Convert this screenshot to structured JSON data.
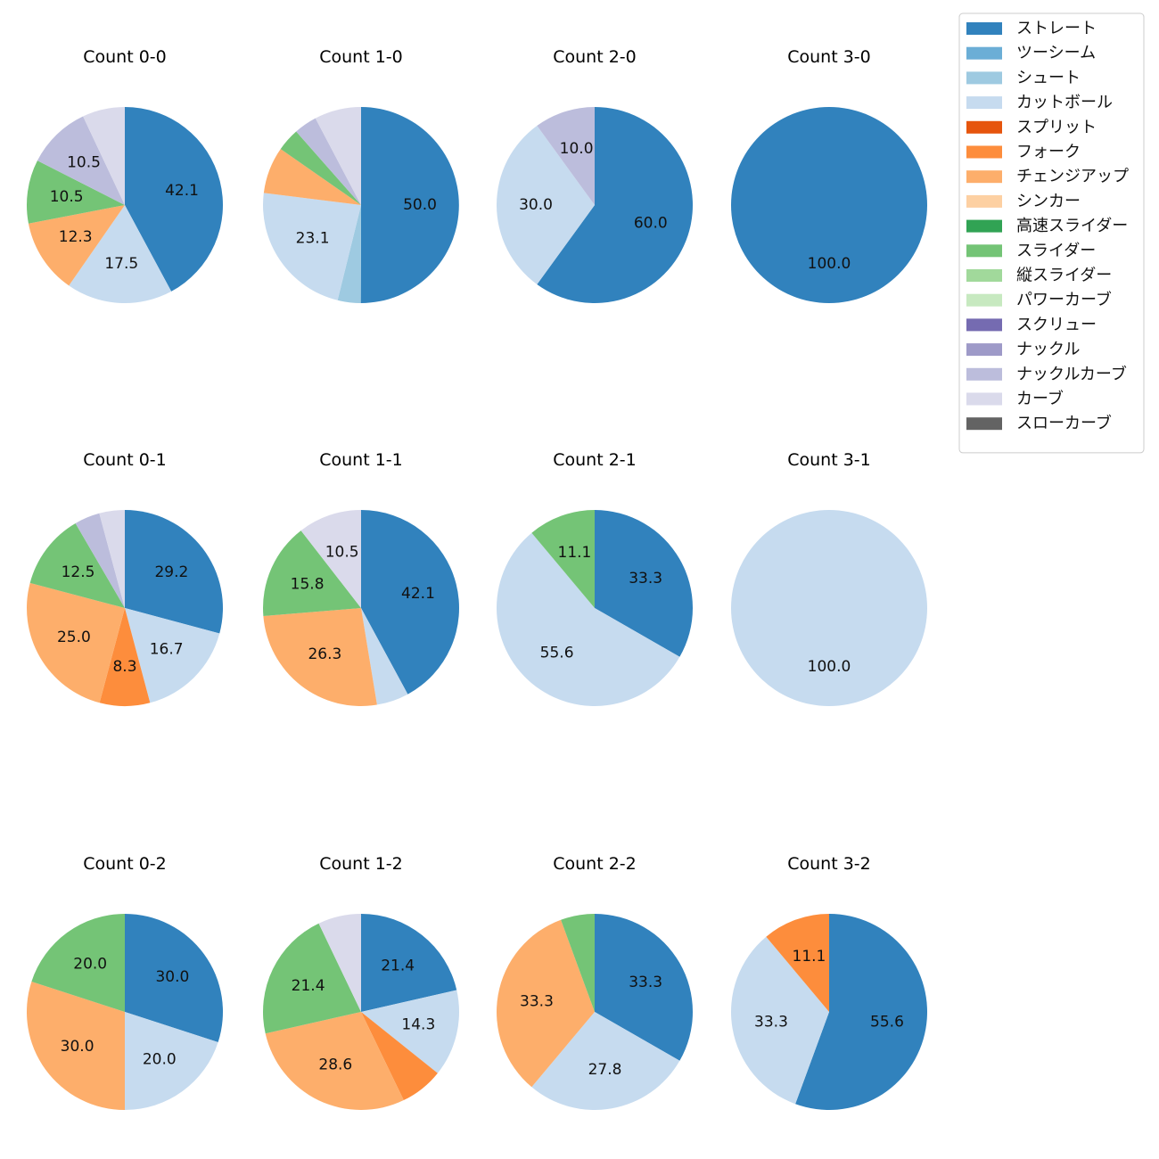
{
  "chart_data": {
    "type": "pie",
    "layout": "3x4 grid of pies",
    "start": "top, clockwise",
    "categories": [
      {
        "name": "ストレート",
        "color": "#3182bd"
      },
      {
        "name": "ツーシーム",
        "color": "#6baed6"
      },
      {
        "name": "シュート",
        "color": "#9ecae1"
      },
      {
        "name": "カットボール",
        "color": "#c6dbef"
      },
      {
        "name": "スプリット",
        "color": "#e6550d"
      },
      {
        "name": "フォーク",
        "color": "#fd8d3c"
      },
      {
        "name": "チェンジアップ",
        "color": "#fdae6b"
      },
      {
        "name": "シンカー",
        "color": "#fdd0a2"
      },
      {
        "name": "高速スライダー",
        "color": "#31a354"
      },
      {
        "name": "スライダー",
        "color": "#74c476"
      },
      {
        "name": "縦スライダー",
        "color": "#a1d99b"
      },
      {
        "name": "パワーカーブ",
        "color": "#c7e9c0"
      },
      {
        "name": "スクリュー",
        "color": "#756bb1"
      },
      {
        "name": "ナックル",
        "color": "#9e9ac8"
      },
      {
        "name": "ナックルカーブ",
        "color": "#bcbddc"
      },
      {
        "name": "カーブ",
        "color": "#dadaeb"
      },
      {
        "name": "スローカーブ",
        "color": "#636363"
      }
    ],
    "legend": {
      "position": "top-right"
    },
    "pies": [
      {
        "title": "Count 0-0",
        "slices": [
          {
            "category": "ストレート",
            "value": 42.1,
            "label": "42.1"
          },
          {
            "category": "カットボール",
            "value": 17.5,
            "label": "17.5"
          },
          {
            "category": "チェンジアップ",
            "value": 12.3,
            "label": "12.3"
          },
          {
            "category": "スライダー",
            "value": 10.5,
            "label": "10.5"
          },
          {
            "category": "ナックルカーブ",
            "value": 10.5,
            "label": "10.5"
          },
          {
            "category": "カーブ",
            "value": 7.0,
            "label": ""
          }
        ]
      },
      {
        "title": "Count 1-0",
        "slices": [
          {
            "category": "ストレート",
            "value": 50.0,
            "label": "50.0"
          },
          {
            "category": "シュート",
            "value": 3.8,
            "label": ""
          },
          {
            "category": "カットボール",
            "value": 23.1,
            "label": "23.1"
          },
          {
            "category": "チェンジアップ",
            "value": 7.7,
            "label": ""
          },
          {
            "category": "スライダー",
            "value": 3.8,
            "label": ""
          },
          {
            "category": "ナックルカーブ",
            "value": 3.8,
            "label": ""
          },
          {
            "category": "カーブ",
            "value": 7.7,
            "label": ""
          }
        ]
      },
      {
        "title": "Count 2-0",
        "slices": [
          {
            "category": "ストレート",
            "value": 60.0,
            "label": "60.0"
          },
          {
            "category": "カットボール",
            "value": 30.0,
            "label": "30.0"
          },
          {
            "category": "ナックルカーブ",
            "value": 10.0,
            "label": "10.0"
          }
        ]
      },
      {
        "title": "Count 3-0",
        "slices": [
          {
            "category": "ストレート",
            "value": 100.0,
            "label": "100.0"
          }
        ]
      },
      {
        "title": "Count 0-1",
        "slices": [
          {
            "category": "ストレート",
            "value": 29.2,
            "label": "29.2"
          },
          {
            "category": "カットボール",
            "value": 16.7,
            "label": "16.7"
          },
          {
            "category": "フォーク",
            "value": 8.3,
            "label": "8.3"
          },
          {
            "category": "チェンジアップ",
            "value": 25.0,
            "label": "25.0"
          },
          {
            "category": "スライダー",
            "value": 12.5,
            "label": "12.5"
          },
          {
            "category": "ナックルカーブ",
            "value": 4.2,
            "label": ""
          },
          {
            "category": "カーブ",
            "value": 4.2,
            "label": ""
          }
        ]
      },
      {
        "title": "Count 1-1",
        "slices": [
          {
            "category": "ストレート",
            "value": 42.1,
            "label": "42.1"
          },
          {
            "category": "カットボール",
            "value": 5.3,
            "label": ""
          },
          {
            "category": "チェンジアップ",
            "value": 26.3,
            "label": "26.3"
          },
          {
            "category": "スライダー",
            "value": 15.8,
            "label": "15.8"
          },
          {
            "category": "カーブ",
            "value": 10.5,
            "label": "10.5"
          }
        ]
      },
      {
        "title": "Count 2-1",
        "slices": [
          {
            "category": "ストレート",
            "value": 33.3,
            "label": "33.3"
          },
          {
            "category": "カットボール",
            "value": 55.6,
            "label": "55.6"
          },
          {
            "category": "スライダー",
            "value": 11.1,
            "label": "11.1"
          }
        ]
      },
      {
        "title": "Count 3-1",
        "slices": [
          {
            "category": "カットボール",
            "value": 100.0,
            "label": "100.0"
          }
        ]
      },
      {
        "title": "Count 0-2",
        "slices": [
          {
            "category": "ストレート",
            "value": 30.0,
            "label": "30.0"
          },
          {
            "category": "カットボール",
            "value": 20.0,
            "label": "20.0"
          },
          {
            "category": "チェンジアップ",
            "value": 30.0,
            "label": "30.0"
          },
          {
            "category": "スライダー",
            "value": 20.0,
            "label": "20.0"
          }
        ]
      },
      {
        "title": "Count 1-2",
        "slices": [
          {
            "category": "ストレート",
            "value": 21.4,
            "label": "21.4"
          },
          {
            "category": "カットボール",
            "value": 14.3,
            "label": "14.3"
          },
          {
            "category": "フォーク",
            "value": 7.1,
            "label": ""
          },
          {
            "category": "チェンジアップ",
            "value": 28.6,
            "label": "28.6"
          },
          {
            "category": "スライダー",
            "value": 21.4,
            "label": "21.4"
          },
          {
            "category": "カーブ",
            "value": 7.1,
            "label": ""
          }
        ]
      },
      {
        "title": "Count 2-2",
        "slices": [
          {
            "category": "ストレート",
            "value": 33.3,
            "label": "33.3"
          },
          {
            "category": "カットボール",
            "value": 27.8,
            "label": "27.8"
          },
          {
            "category": "チェンジアップ",
            "value": 33.3,
            "label": "33.3"
          },
          {
            "category": "スライダー",
            "value": 5.6,
            "label": ""
          }
        ]
      },
      {
        "title": "Count 3-2",
        "slices": [
          {
            "category": "ストレート",
            "value": 55.6,
            "label": "55.6"
          },
          {
            "category": "カットボール",
            "value": 33.3,
            "label": "33.3"
          },
          {
            "category": "フォーク",
            "value": 11.1,
            "label": "11.1"
          }
        ]
      }
    ]
  }
}
